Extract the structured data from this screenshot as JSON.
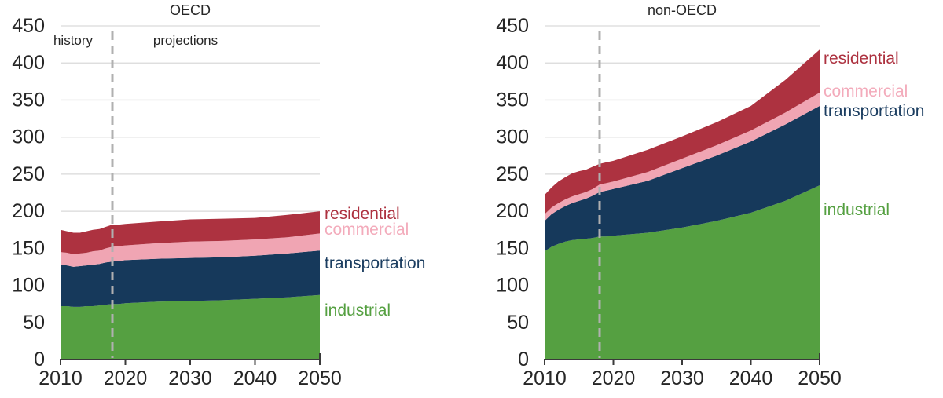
{
  "chart_data": [
    {
      "type": "area",
      "stacked": true,
      "title": "OECD",
      "xlabel": "",
      "ylabel": "",
      "xlim": [
        2010,
        2050
      ],
      "ylim": [
        0,
        450
      ],
      "xticks": [
        2010,
        2020,
        2030,
        2040,
        2050
      ],
      "yticks": [
        0,
        50,
        100,
        150,
        200,
        250,
        300,
        350,
        400,
        450
      ],
      "grid": "horizontal",
      "history_end": 2018,
      "annotations": {
        "history": "history",
        "projections": "projections"
      },
      "divider_color": "#b0b0b0",
      "x": [
        2010,
        2011,
        2012,
        2013,
        2014,
        2015,
        2016,
        2017,
        2018,
        2019,
        2020,
        2025,
        2030,
        2035,
        2040,
        2045,
        2050
      ],
      "series": [
        {
          "name": "industrial",
          "color": "#55a041",
          "values": [
            72,
            72,
            71,
            71,
            72,
            72,
            73,
            74,
            75,
            75,
            76,
            78,
            79,
            80,
            82,
            84,
            87
          ]
        },
        {
          "name": "transportation",
          "color": "#16395b",
          "values": [
            56,
            55,
            54,
            55,
            55,
            56,
            56,
            57,
            57,
            58,
            58,
            58,
            58,
            58,
            58,
            59,
            60
          ]
        },
        {
          "name": "commercial",
          "color": "#f0a5b3",
          "values": [
            17,
            17,
            17,
            17,
            17,
            18,
            18,
            19,
            20,
            20,
            20,
            21,
            22,
            22,
            22,
            22,
            23
          ]
        },
        {
          "name": "residential",
          "color": "#ad3240",
          "values": [
            30,
            29,
            29,
            28,
            29,
            29,
            29,
            29,
            30,
            29,
            29,
            29,
            30,
            30,
            29,
            30,
            30
          ]
        }
      ],
      "legend_position": "right-of-plot"
    },
    {
      "type": "area",
      "stacked": true,
      "title": "non-OECD",
      "xlabel": "",
      "ylabel": "",
      "xlim": [
        2010,
        2050
      ],
      "ylim": [
        0,
        450
      ],
      "xticks": [
        2010,
        2020,
        2030,
        2040,
        2050
      ],
      "yticks": [
        0,
        50,
        100,
        150,
        200,
        250,
        300,
        350,
        400,
        450
      ],
      "grid": "horizontal",
      "history_end": 2018,
      "divider_color": "#b0b0b0",
      "x": [
        2010,
        2011,
        2012,
        2013,
        2014,
        2015,
        2016,
        2017,
        2018,
        2019,
        2020,
        2025,
        2030,
        2035,
        2040,
        2045,
        2050
      ],
      "series": [
        {
          "name": "industrial",
          "color": "#55a041",
          "values": [
            146,
            152,
            156,
            159,
            161,
            162,
            163,
            164,
            166,
            166,
            167,
            171,
            178,
            187,
            198,
            214,
            235
          ]
        },
        {
          "name": "transportation",
          "color": "#16395b",
          "values": [
            41,
            44,
            46,
            48,
            50,
            52,
            54,
            57,
            60,
            62,
            63,
            70,
            80,
            88,
            96,
            103,
            107
          ]
        },
        {
          "name": "commercial",
          "color": "#f0a5b3",
          "values": [
            9,
            9,
            9,
            9,
            9,
            9,
            9,
            9,
            10,
            10,
            10,
            12,
            13,
            14,
            15,
            16,
            18
          ]
        },
        {
          "name": "residential",
          "color": "#ad3240",
          "values": [
            26,
            27,
            29,
            30,
            31,
            31,
            30,
            30,
            28,
            28,
            28,
            30,
            30,
            31,
            33,
            44,
            58
          ]
        }
      ],
      "legend_position": "right-of-plot"
    }
  ]
}
